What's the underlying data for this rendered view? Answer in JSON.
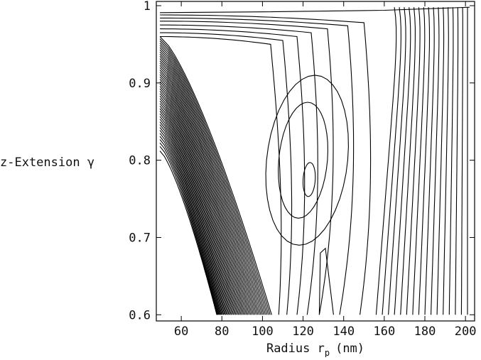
{
  "chart_data": {
    "type": "contour",
    "ylabel": "z-Extension γ",
    "xlabel": "Radius r",
    "xlabel_subscript": "p",
    "xlabel_unit": "(nm)",
    "xlim": [
      47.7,
      204.5
    ],
    "xticks": [
      60,
      80,
      100,
      120,
      140,
      160,
      180,
      200
    ],
    "ylim": [
      0.592,
      1.0055
    ],
    "yticks": [
      0.6,
      0.7,
      0.8,
      0.9,
      1
    ],
    "line_color": "#000000"
  }
}
